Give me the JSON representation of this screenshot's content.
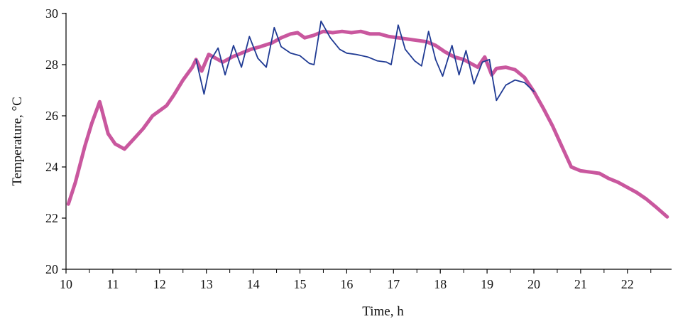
{
  "chart_data": {
    "type": "line",
    "title": "",
    "xlabel": "Time, h",
    "ylabel": "Temperature, °C",
    "xlim": [
      10,
      22.8
    ],
    "ylim": [
      20,
      30
    ],
    "x_ticks": [
      10,
      11,
      12,
      13,
      14,
      15,
      16,
      17,
      18,
      19,
      20,
      21,
      22
    ],
    "y_ticks": [
      20,
      22,
      24,
      26,
      28,
      30
    ],
    "grid": false,
    "legend": "none",
    "series": [
      {
        "color": "#c9579e",
        "style": "thick",
        "points": [
          [
            10.05,
            22.55
          ],
          [
            10.2,
            23.4
          ],
          [
            10.4,
            24.8
          ],
          [
            10.55,
            25.7
          ],
          [
            10.72,
            26.55
          ],
          [
            10.9,
            25.3
          ],
          [
            11.05,
            24.9
          ],
          [
            11.25,
            24.7
          ],
          [
            11.45,
            25.1
          ],
          [
            11.65,
            25.5
          ],
          [
            11.85,
            26.0
          ],
          [
            12.0,
            26.2
          ],
          [
            12.15,
            26.4
          ],
          [
            12.3,
            26.8
          ],
          [
            12.5,
            27.4
          ],
          [
            12.7,
            27.9
          ],
          [
            12.78,
            28.2
          ],
          [
            12.9,
            27.75
          ],
          [
            13.05,
            28.4
          ],
          [
            13.2,
            28.25
          ],
          [
            13.35,
            28.1
          ],
          [
            13.55,
            28.3
          ],
          [
            13.75,
            28.45
          ],
          [
            13.95,
            28.6
          ],
          [
            14.15,
            28.7
          ],
          [
            14.4,
            28.85
          ],
          [
            14.6,
            29.05
          ],
          [
            14.8,
            29.2
          ],
          [
            14.95,
            29.25
          ],
          [
            15.1,
            29.05
          ],
          [
            15.3,
            29.15
          ],
          [
            15.5,
            29.3
          ],
          [
            15.7,
            29.25
          ],
          [
            15.9,
            29.3
          ],
          [
            16.1,
            29.25
          ],
          [
            16.3,
            29.3
          ],
          [
            16.5,
            29.2
          ],
          [
            16.7,
            29.2
          ],
          [
            16.9,
            29.1
          ],
          [
            17.1,
            29.05
          ],
          [
            17.3,
            29.0
          ],
          [
            17.5,
            28.95
          ],
          [
            17.7,
            28.9
          ],
          [
            17.9,
            28.75
          ],
          [
            18.1,
            28.5
          ],
          [
            18.3,
            28.3
          ],
          [
            18.5,
            28.2
          ],
          [
            18.65,
            28.05
          ],
          [
            18.8,
            27.9
          ],
          [
            18.95,
            28.3
          ],
          [
            19.1,
            27.6
          ],
          [
            19.2,
            27.85
          ],
          [
            19.4,
            27.9
          ],
          [
            19.6,
            27.8
          ],
          [
            19.8,
            27.5
          ],
          [
            20.0,
            26.95
          ],
          [
            20.2,
            26.3
          ],
          [
            20.4,
            25.6
          ],
          [
            20.6,
            24.8
          ],
          [
            20.8,
            24.0
          ],
          [
            21.0,
            23.85
          ],
          [
            21.2,
            23.8
          ],
          [
            21.4,
            23.75
          ],
          [
            21.6,
            23.55
          ],
          [
            21.8,
            23.4
          ],
          [
            22.0,
            23.2
          ],
          [
            22.2,
            23.0
          ],
          [
            22.4,
            22.75
          ],
          [
            22.6,
            22.45
          ],
          [
            22.85,
            22.05
          ]
        ]
      },
      {
        "color": "#1f3a93",
        "style": "thin",
        "points": [
          [
            12.78,
            28.2
          ],
          [
            12.95,
            26.85
          ],
          [
            13.1,
            28.2
          ],
          [
            13.25,
            28.65
          ],
          [
            13.4,
            27.6
          ],
          [
            13.58,
            28.75
          ],
          [
            13.75,
            27.9
          ],
          [
            13.92,
            29.1
          ],
          [
            14.1,
            28.25
          ],
          [
            14.28,
            27.9
          ],
          [
            14.45,
            29.45
          ],
          [
            14.6,
            28.7
          ],
          [
            14.8,
            28.45
          ],
          [
            15.0,
            28.35
          ],
          [
            15.2,
            28.05
          ],
          [
            15.3,
            28.0
          ],
          [
            15.45,
            29.7
          ],
          [
            15.65,
            29.05
          ],
          [
            15.85,
            28.6
          ],
          [
            16.0,
            28.45
          ],
          [
            16.2,
            28.4
          ],
          [
            16.45,
            28.3
          ],
          [
            16.65,
            28.15
          ],
          [
            16.85,
            28.1
          ],
          [
            16.95,
            28.0
          ],
          [
            17.1,
            29.55
          ],
          [
            17.25,
            28.6
          ],
          [
            17.45,
            28.15
          ],
          [
            17.6,
            27.95
          ],
          [
            17.75,
            29.3
          ],
          [
            17.9,
            28.2
          ],
          [
            18.05,
            27.55
          ],
          [
            18.25,
            28.75
          ],
          [
            18.4,
            27.6
          ],
          [
            18.55,
            28.55
          ],
          [
            18.72,
            27.25
          ],
          [
            18.9,
            28.1
          ],
          [
            19.05,
            28.2
          ],
          [
            19.2,
            26.6
          ],
          [
            19.4,
            27.2
          ],
          [
            19.6,
            27.4
          ],
          [
            19.8,
            27.3
          ],
          [
            20.0,
            26.95
          ]
        ]
      }
    ]
  }
}
